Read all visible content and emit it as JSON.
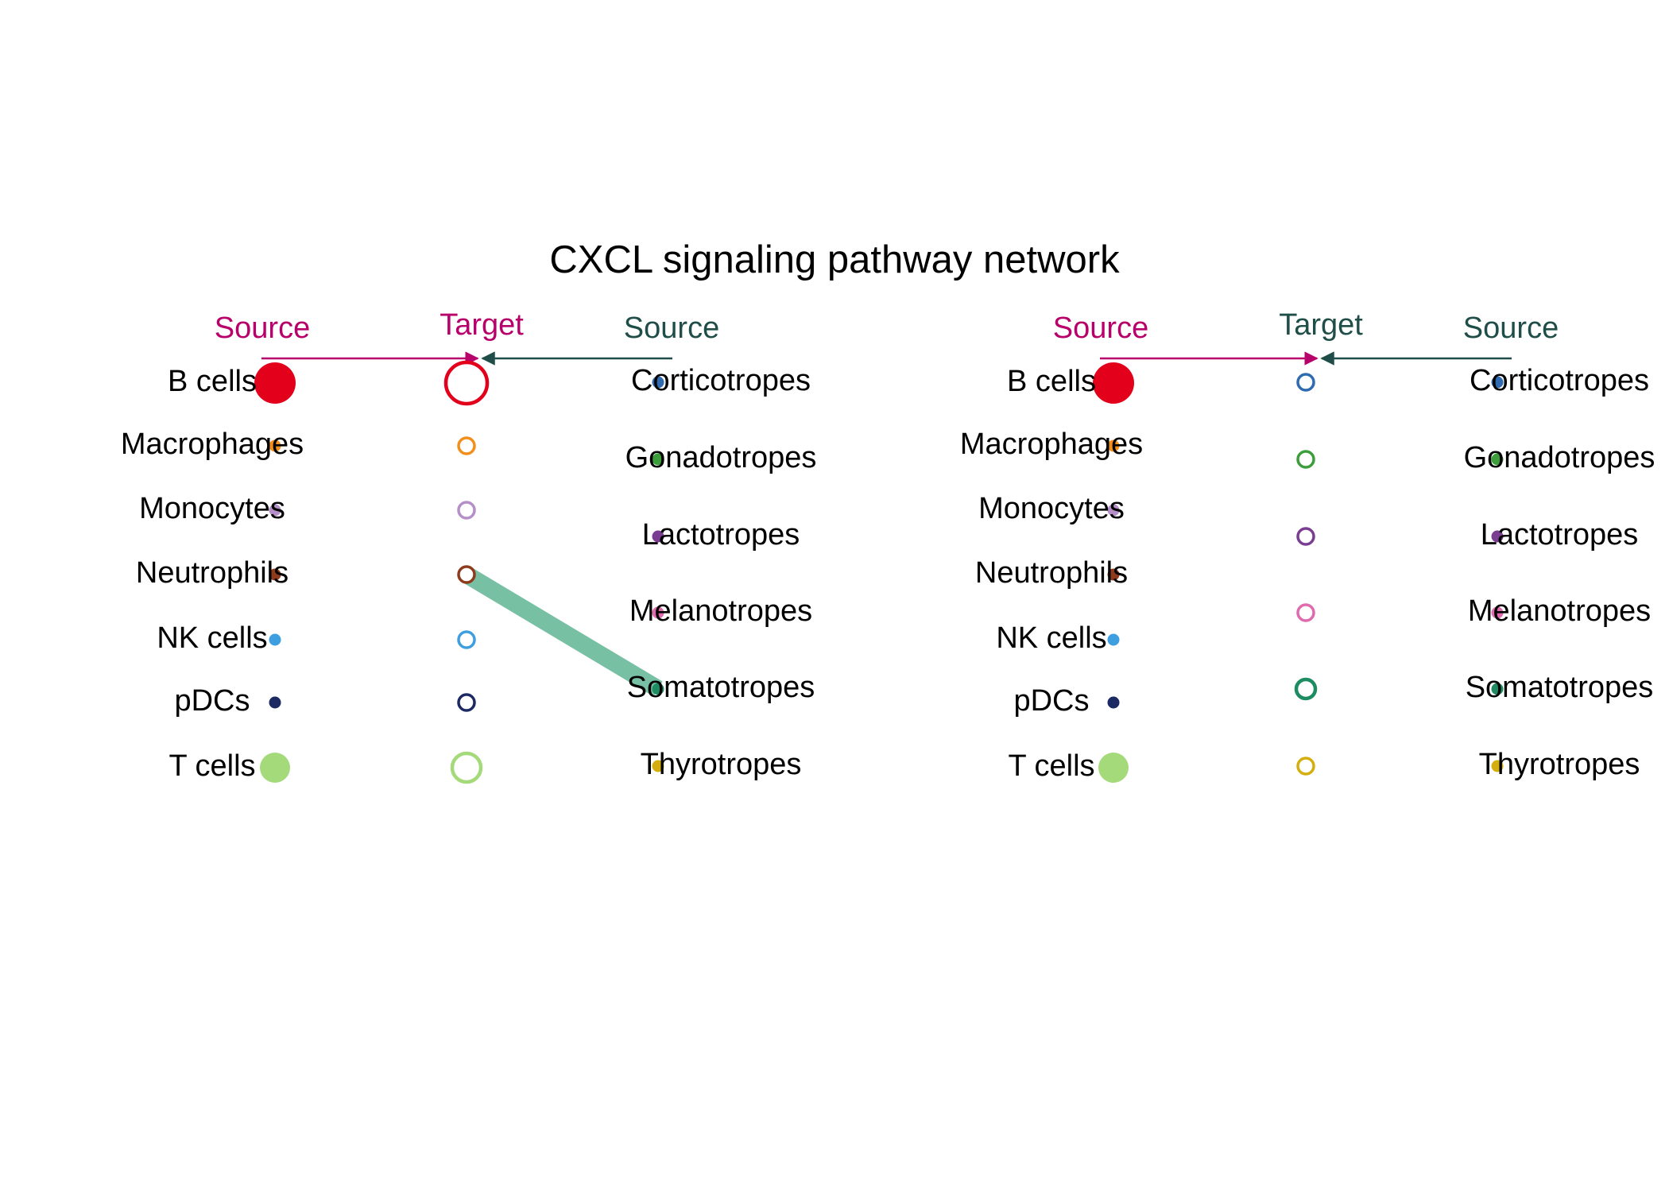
{
  "title": "CXCL signaling pathway network",
  "colors": {
    "source_header": "#B8006B",
    "target_header_left": "#B8006B",
    "target_header_right": "#1F4E49",
    "source_right_header": "#1F4E49",
    "arrow_left": "#B8006B",
    "arrow_right": "#1F4E49",
    "edge": "#78C0A4"
  },
  "panels": [
    {
      "headers": {
        "source_left": "Source",
        "target": "Target",
        "source_right": "Source"
      },
      "sources": [
        {
          "label": "B cells",
          "color": "#E3001B",
          "size": 5
        },
        {
          "label": "Macrophages",
          "color": "#F28E1C",
          "size": 1
        },
        {
          "label": "Monocytes",
          "color": "#B58FC8",
          "size": 1
        },
        {
          "label": "Neutrophils",
          "color": "#8E3B1D",
          "size": 1
        },
        {
          "label": "NK cells",
          "color": "#3E9FE0",
          "size": 1
        },
        {
          "label": "pDCs",
          "color": "#1C2A63",
          "size": 1
        },
        {
          "label": "T cells",
          "color": "#A5DA7A",
          "size": 4
        }
      ],
      "targets": [
        {
          "color": "#E3001B",
          "size": 5
        },
        {
          "color": "#F28E1C",
          "size": 1
        },
        {
          "color": "#B58FC8",
          "size": 1
        },
        {
          "color": "#8E3B1D",
          "size": 1
        },
        {
          "color": "#3E9FE0",
          "size": 1
        },
        {
          "color": "#1C2A63",
          "size": 1
        },
        {
          "color": "#A5DA7A",
          "size": 4
        }
      ],
      "right_sources": [
        {
          "label": "Corticotropes",
          "color": "#2F6BB0",
          "size": 1
        },
        {
          "label": "Gonadotropes",
          "color": "#3C9E3A",
          "size": 1
        },
        {
          "label": "Lactotropes",
          "color": "#7B3D91",
          "size": 1
        },
        {
          "label": "Melanotropes",
          "color": "#E06AAE",
          "size": 1
        },
        {
          "label": "Somatotropes",
          "color": "#1E8C62",
          "size": 1
        },
        {
          "label": "Thyrotropes",
          "color": "#D4AE0E",
          "size": 1
        }
      ],
      "edges": [
        {
          "from_right": "Somatotropes",
          "to_target_index": 3,
          "weight": 1
        }
      ]
    },
    {
      "headers": {
        "source_left": "Source",
        "target": "Target",
        "source_right": "Source"
      },
      "sources": [
        {
          "label": "B cells",
          "color": "#E3001B",
          "size": 5
        },
        {
          "label": "Macrophages",
          "color": "#F28E1C",
          "size": 1
        },
        {
          "label": "Monocytes",
          "color": "#B58FC8",
          "size": 1
        },
        {
          "label": "Neutrophils",
          "color": "#8E3B1D",
          "size": 1
        },
        {
          "label": "NK cells",
          "color": "#3E9FE0",
          "size": 1
        },
        {
          "label": "pDCs",
          "color": "#1C2A63",
          "size": 1
        },
        {
          "label": "T cells",
          "color": "#A5DA7A",
          "size": 4
        }
      ],
      "targets": [
        {
          "color": "#2F6BB0",
          "size": 1
        },
        {
          "color": "#3C9E3A",
          "size": 1
        },
        {
          "color": "#7B3D91",
          "size": 1
        },
        {
          "color": "#E06AAE",
          "size": 1
        },
        {
          "color": "#1E8C62",
          "size": 2
        },
        {
          "color": "#D4AE0E",
          "size": 1
        }
      ],
      "right_sources": [
        {
          "label": "Corticotropes",
          "color": "#2F6BB0",
          "size": 1
        },
        {
          "label": "Gonadotropes",
          "color": "#3C9E3A",
          "size": 1
        },
        {
          "label": "Lactotropes",
          "color": "#7B3D91",
          "size": 1
        },
        {
          "label": "Melanotropes",
          "color": "#E06AAE",
          "size": 1
        },
        {
          "label": "Somatotropes",
          "color": "#1E8C62",
          "size": 1
        },
        {
          "label": "Thyrotropes",
          "color": "#D4AE0E",
          "size": 1
        }
      ],
      "edges": []
    }
  ]
}
